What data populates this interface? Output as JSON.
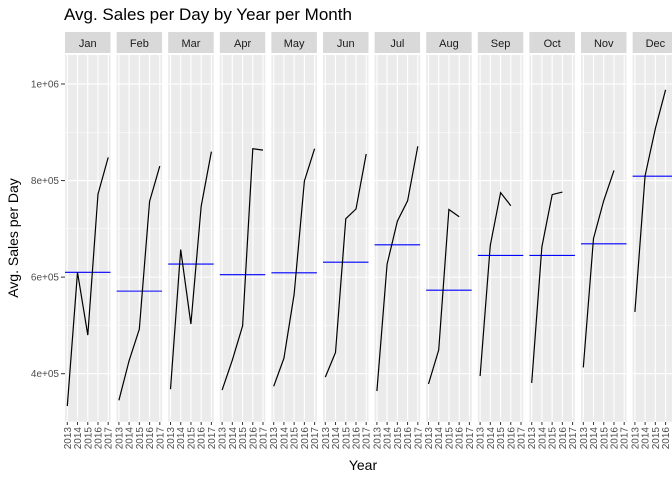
{
  "chart_data": {
    "type": "line",
    "title": "Avg. Sales per Day by Year per Month",
    "xlabel": "Year",
    "ylabel": "Avg. Sales per Day",
    "x": [
      "2013",
      "2014",
      "2015",
      "2016",
      "2017"
    ],
    "y_ticks": [
      "4e+05",
      "6e+05",
      "8e+05",
      "1e+06"
    ],
    "ylim": [
      300000,
      1060000
    ],
    "grid": true,
    "legend": "none",
    "colors": {
      "line": "#000000",
      "mean_line": "#0000ff",
      "panel_bg": "#ebebeb",
      "strip_bg": "#d9d9d9",
      "grid": "#ffffff"
    },
    "facets": [
      {
        "month": "Jan",
        "values": [
          333000,
          610000,
          480000,
          772000,
          848000
        ],
        "mean": 610000
      },
      {
        "month": "Feb",
        "values": [
          345000,
          427000,
          492000,
          757000,
          830000
        ],
        "mean": 571000
      },
      {
        "month": "Mar",
        "values": [
          368000,
          657000,
          503000,
          747000,
          860000
        ],
        "mean": 627000
      },
      {
        "month": "Apr",
        "values": [
          366000,
          428000,
          499000,
          866000,
          863000
        ],
        "mean": 605000
      },
      {
        "month": "May",
        "values": [
          374000,
          432000,
          564000,
          799000,
          866000
        ],
        "mean": 609000
      },
      {
        "month": "Jun",
        "values": [
          393000,
          444000,
          721000,
          741000,
          855000
        ],
        "mean": 631000
      },
      {
        "month": "Jul",
        "values": [
          364000,
          627000,
          716000,
          758000,
          871000
        ],
        "mean": 667000
      },
      {
        "month": "Aug",
        "values": [
          379000,
          449000,
          740000,
          725000,
          null
        ],
        "mean": 573000
      },
      {
        "month": "Sep",
        "values": [
          395000,
          666000,
          775000,
          748000,
          null
        ],
        "mean": 645000
      },
      {
        "month": "Oct",
        "values": [
          381000,
          663000,
          771000,
          776000,
          null
        ],
        "mean": 645000
      },
      {
        "month": "Nov",
        "values": [
          413000,
          680000,
          759000,
          821000,
          null
        ],
        "mean": 669000
      },
      {
        "month": "Dec",
        "values": [
          528000,
          810000,
          908000,
          988000,
          null
        ],
        "mean": 809000
      }
    ]
  }
}
